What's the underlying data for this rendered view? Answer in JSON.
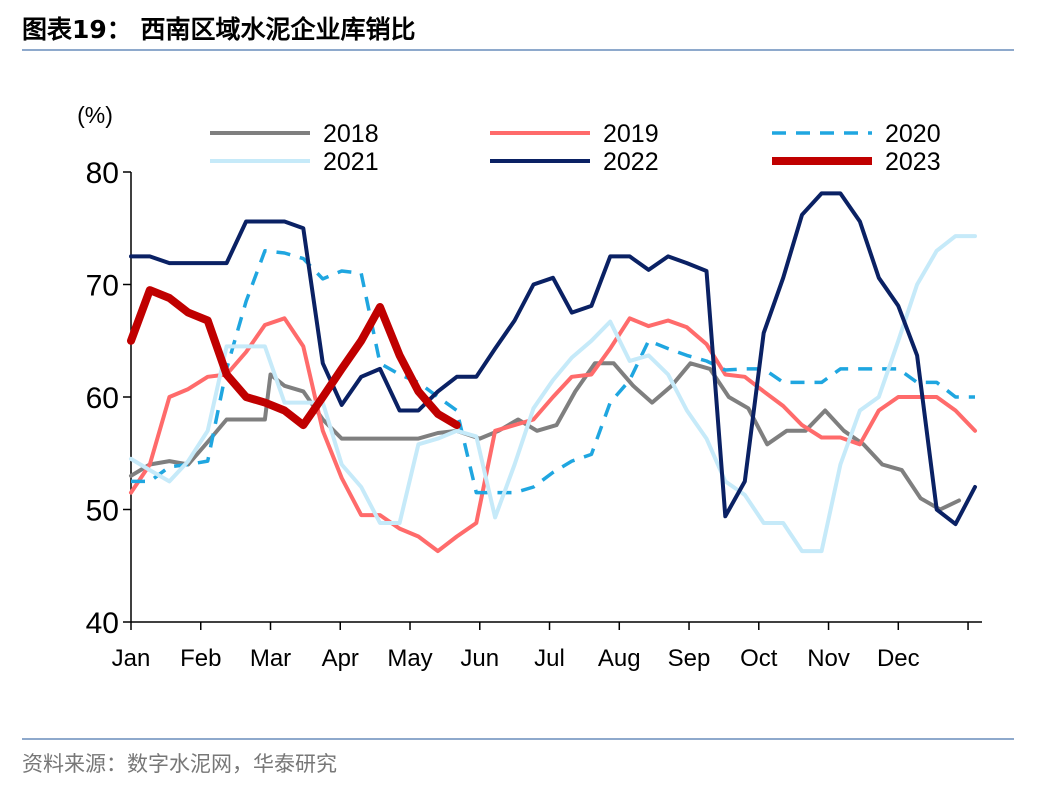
{
  "figure_title": "图表19：   西南区域水泥企业库销比",
  "source_text": "资料来源：数字水泥网，华泰研究",
  "chart_data": {
    "type": "line",
    "ylabel": "(%)",
    "ylim": [
      40,
      80
    ],
    "yticks": [
      40,
      50,
      60,
      70,
      80
    ],
    "xlim": [
      0,
      12.2
    ],
    "month_labels": [
      "Jan",
      "Feb",
      "Mar",
      "Apr",
      "May",
      "Jun",
      "Jul",
      "Aug",
      "Sep",
      "Oct",
      "Nov",
      "Dec"
    ],
    "grid": false,
    "legend_position": "top",
    "series": [
      {
        "name": "2018",
        "color": "#7f7f7f",
        "width": 4,
        "dash": "",
        "x": [
          0,
          0.27,
          0.55,
          0.82,
          1.1,
          1.37,
          1.65,
          1.92,
          2.0,
          2.2,
          2.47,
          2.75,
          3.02,
          3.3,
          3.57,
          3.85,
          4.12,
          4.4,
          4.67,
          5.0,
          5.27,
          5.55,
          5.82,
          6.1,
          6.37,
          6.65,
          6.92,
          7.2,
          7.47,
          7.75,
          8.02,
          8.3,
          8.57,
          8.85,
          9.12,
          9.4,
          9.67,
          9.95,
          10.22,
          10.5,
          10.77,
          11.05,
          11.32,
          11.6,
          11.87
        ],
        "y": [
          53,
          54,
          54.3,
          54,
          56,
          58,
          58,
          58,
          62,
          61,
          60.5,
          58,
          56.3,
          56.3,
          56.3,
          56.3,
          56.3,
          56.8,
          57,
          56.3,
          57,
          58,
          57,
          57.5,
          60.5,
          63,
          63,
          61,
          59.5,
          61,
          63,
          62.5,
          60,
          59,
          55.8,
          57,
          57,
          58.8,
          57,
          55.8,
          54,
          53.5,
          51,
          50,
          50.8
        ]
      },
      {
        "name": "2019",
        "color": "#ff6b6b",
        "width": 4,
        "dash": "",
        "x": [
          0,
          0.27,
          0.55,
          0.82,
          1.1,
          1.37,
          1.65,
          1.92,
          2.2,
          2.47,
          2.75,
          3.02,
          3.3,
          3.57,
          3.85,
          4.12,
          4.4,
          4.67,
          4.95,
          5.22,
          5.5,
          5.77,
          6.05,
          6.32,
          6.6,
          6.87,
          7.15,
          7.42,
          7.7,
          7.97,
          8.25,
          8.52,
          8.8,
          9.07,
          9.35,
          9.62,
          9.9,
          10.17,
          10.45,
          10.72,
          11.0,
          11.27,
          11.55,
          11.82,
          12.1
        ],
        "y": [
          51.5,
          54,
          60,
          60.7,
          61.8,
          62,
          64,
          66.4,
          67,
          64.5,
          57,
          52.8,
          49.5,
          49.5,
          48.3,
          47.6,
          46.3,
          47.6,
          48.8,
          57,
          57.5,
          58,
          60,
          61.8,
          62,
          64.3,
          67,
          66.3,
          66.8,
          66.2,
          64.7,
          62,
          61.8,
          60.5,
          59.2,
          57.5,
          56.4,
          56.4,
          55.8,
          58.8,
          60,
          60,
          60,
          58.8,
          57
        ]
      },
      {
        "name": "2020",
        "color": "#1fa6e0",
        "width": 3.5,
        "dash": "14 10",
        "x": [
          0,
          0.27,
          0.55,
          0.82,
          1.1,
          1.37,
          1.65,
          1.92,
          2.2,
          2.47,
          2.75,
          3.02,
          3.3,
          3.57,
          3.85,
          4.12,
          4.4,
          4.67,
          4.95,
          5.22,
          5.5,
          5.77,
          6.05,
          6.32,
          6.6,
          6.87,
          7.15,
          7.42,
          7.7,
          7.97,
          8.25,
          8.52,
          8.8,
          9.07,
          9.35,
          9.62,
          9.9,
          10.17,
          10.45,
          10.72,
          11.0,
          11.27,
          11.55,
          11.82,
          12.1
        ],
        "y": [
          52.5,
          52.5,
          53.8,
          54,
          54.3,
          62.5,
          68.5,
          73,
          72.8,
          72.3,
          70.5,
          71.2,
          71,
          63,
          62,
          61.3,
          60,
          58.8,
          51.5,
          51.5,
          51.5,
          52,
          53.3,
          54.3,
          54.9,
          59.5,
          61.5,
          65,
          64.3,
          63.7,
          63.2,
          62.4,
          62.5,
          62.5,
          61.3,
          61.3,
          61.3,
          62.5,
          62.5,
          62.5,
          62.5,
          61.3,
          61.3,
          60,
          60
        ]
      },
      {
        "name": "2021",
        "color": "#c6eaf9",
        "width": 4,
        "dash": "",
        "x": [
          0,
          0.27,
          0.55,
          0.82,
          1.1,
          1.37,
          1.65,
          1.92,
          2.2,
          2.47,
          2.75,
          3.02,
          3.3,
          3.57,
          3.85,
          4.12,
          4.4,
          4.67,
          4.95,
          5.22,
          5.5,
          5.77,
          6.05,
          6.32,
          6.6,
          6.87,
          7.15,
          7.42,
          7.7,
          7.97,
          8.25,
          8.52,
          8.8,
          9.07,
          9.35,
          9.62,
          9.9,
          10.17,
          10.45,
          10.72,
          11.0,
          11.27,
          11.55,
          11.82,
          12.1
        ],
        "y": [
          54.5,
          53.5,
          52.5,
          54.3,
          57,
          64.5,
          64.5,
          64.5,
          59.5,
          59.5,
          59.5,
          54,
          52,
          48.8,
          48.8,
          55.8,
          56.3,
          57,
          56.5,
          49.3,
          54,
          59,
          61.5,
          63.5,
          65,
          66.7,
          63.2,
          63.7,
          62,
          58.8,
          56.3,
          52.5,
          51.3,
          48.8,
          48.8,
          46.3,
          46.3,
          54,
          58.8,
          60,
          65,
          70,
          73,
          74.3,
          74.3
        ]
      },
      {
        "name": "2022",
        "color": "#0a2164",
        "width": 4,
        "dash": "",
        "x": [
          0,
          0.27,
          0.55,
          0.82,
          1.1,
          1.37,
          1.65,
          1.92,
          2.2,
          2.47,
          2.75,
          3.02,
          3.3,
          3.57,
          3.85,
          4.12,
          4.4,
          4.67,
          4.95,
          5.22,
          5.5,
          5.77,
          6.05,
          6.32,
          6.6,
          6.87,
          7.15,
          7.42,
          7.7,
          7.97,
          8.25,
          8.52,
          8.8,
          9.07,
          9.35,
          9.62,
          9.9,
          10.17,
          10.45,
          10.72,
          11.0,
          11.27,
          11.55,
          11.82,
          12.1
        ],
        "y": [
          72.5,
          72.5,
          71.9,
          71.9,
          71.9,
          71.9,
          75.6,
          75.6,
          75.6,
          75,
          63,
          59.3,
          61.8,
          62.5,
          58.8,
          58.8,
          60.5,
          61.8,
          61.8,
          64.3,
          66.8,
          70,
          70.6,
          67.5,
          68.1,
          72.5,
          72.5,
          71.3,
          72.5,
          71.9,
          71.2,
          49.4,
          52.5,
          65.7,
          70.6,
          76.2,
          78.1,
          78.1,
          75.6,
          70.6,
          68.1,
          63.7,
          50,
          48.7,
          52
        ]
      },
      {
        "name": "2023",
        "color": "#c00000",
        "width": 8,
        "dash": "",
        "x": [
          0,
          0.27,
          0.55,
          0.82,
          1.1,
          1.37,
          1.65,
          1.92,
          2.2,
          2.47,
          2.75,
          3.02,
          3.3,
          3.57,
          3.85,
          4.12,
          4.4,
          4.67
        ],
        "y": [
          65,
          69.5,
          68.8,
          67.5,
          66.8,
          62,
          60,
          59.5,
          58.8,
          57.5,
          60,
          62.5,
          65,
          68,
          63.7,
          60.5,
          58.5,
          57.5
        ]
      }
    ]
  }
}
